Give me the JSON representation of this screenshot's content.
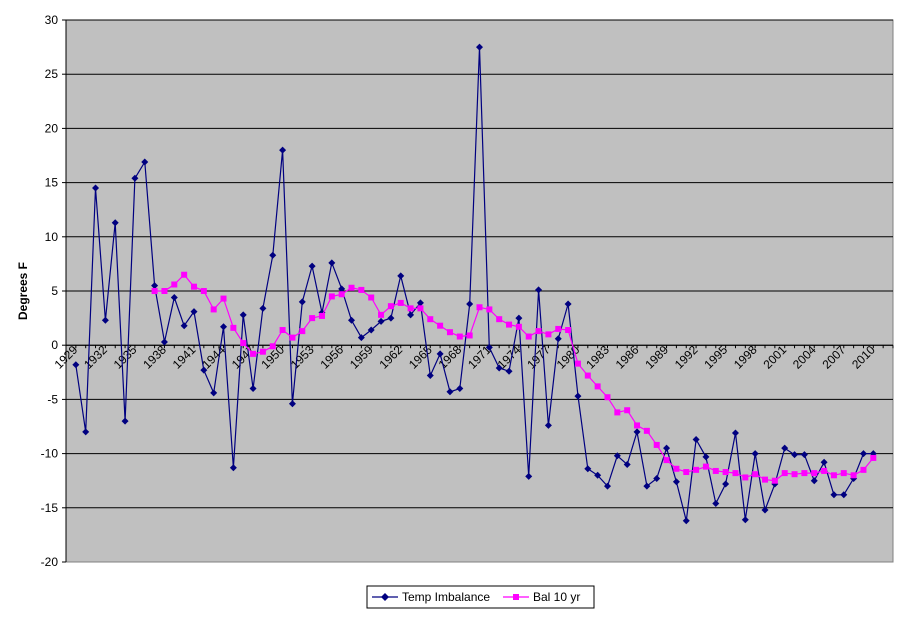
{
  "chart_data": {
    "type": "line",
    "title": "",
    "xlabel": "",
    "ylabel": "Degrees F",
    "ylim": [
      -20,
      30
    ],
    "yticks": [
      -20,
      -15,
      -10,
      -5,
      0,
      5,
      10,
      15,
      20,
      25,
      30
    ],
    "xlim": [
      1929,
      2013
    ],
    "xticks": [
      1929,
      1932,
      1935,
      1938,
      1941,
      1944,
      1947,
      1950,
      1953,
      1956,
      1959,
      1962,
      1965,
      1968,
      1971,
      1974,
      1977,
      1980,
      1983,
      1986,
      1989,
      1992,
      1995,
      1998,
      2001,
      2004,
      2007,
      2010
    ],
    "grid": true,
    "legend_position": "bottom",
    "colors": {
      "plot_bg": "#c0c0c0",
      "series1": "#000080",
      "series2": "#ff00ff"
    },
    "series": [
      {
        "name": "Temp Imbalance",
        "marker": "diamond",
        "x": [
          1930,
          1931,
          1932,
          1933,
          1934,
          1935,
          1936,
          1937,
          1938,
          1939,
          1940,
          1941,
          1942,
          1943,
          1944,
          1945,
          1946,
          1947,
          1948,
          1949,
          1950,
          1951,
          1952,
          1953,
          1954,
          1955,
          1956,
          1957,
          1958,
          1959,
          1960,
          1961,
          1962,
          1963,
          1964,
          1965,
          1966,
          1967,
          1968,
          1969,
          1970,
          1971,
          1972,
          1973,
          1974,
          1975,
          1976,
          1977,
          1978,
          1979,
          1980,
          1981,
          1982,
          1983,
          1984,
          1985,
          1986,
          1987,
          1988,
          1989,
          1990,
          1991,
          1992,
          1993,
          1994,
          1995,
          1996,
          1997,
          1998,
          1999,
          2000,
          2001,
          2002,
          2003,
          2004,
          2005,
          2006,
          2007,
          2008,
          2009,
          2010,
          2011
        ],
        "values": [
          -1.8,
          -8,
          14.5,
          2.3,
          11.3,
          -7,
          15.4,
          16.9,
          5.5,
          0.3,
          4.4,
          1.8,
          3.1,
          -2.3,
          -4.4,
          1.7,
          -11.3,
          2.8,
          -4,
          3.4,
          8.3,
          18,
          -5.4,
          4,
          7.3,
          3,
          7.6,
          5.2,
          2.3,
          0.7,
          1.4,
          2.2,
          2.5,
          6.4,
          2.8,
          3.9,
          -2.8,
          -0.8,
          -4.3,
          -4,
          3.8,
          27.5,
          -0.2,
          -2.1,
          -2.4,
          2.5,
          -12.1,
          5.1,
          -7.4,
          0.6,
          3.8,
          -4.7,
          -11.4,
          -12,
          -13,
          -10.2,
          -11,
          -8,
          -13,
          -12.3,
          -9.5,
          -12.6,
          -16.2,
          -8.7,
          -10.3,
          -14.6,
          -12.8,
          -8.1,
          -16.1,
          -10,
          -15.2,
          -12.8,
          -9.5,
          -10.1,
          -10.1,
          -12.5,
          -10.8,
          -13.8,
          -13.8,
          -12.3,
          -10,
          -10
        ]
      },
      {
        "name": "Bal 10 yr",
        "marker": "square",
        "x": [
          1938,
          1939,
          1940,
          1941,
          1942,
          1943,
          1944,
          1945,
          1946,
          1947,
          1948,
          1949,
          1950,
          1951,
          1952,
          1953,
          1954,
          1955,
          1956,
          1957,
          1958,
          1959,
          1960,
          1961,
          1962,
          1963,
          1964,
          1965,
          1966,
          1967,
          1968,
          1969,
          1970,
          1971,
          1972,
          1973,
          1974,
          1975,
          1976,
          1977,
          1978,
          1979,
          1980,
          1981,
          1982,
          1983,
          1984,
          1985,
          1986,
          1987,
          1988,
          1989,
          1990,
          1991,
          1992,
          1993,
          1994,
          1995,
          1996,
          1997,
          1998,
          1999,
          2000,
          2001,
          2002,
          2003,
          2004,
          2005,
          2006,
          2007,
          2008,
          2009,
          2010,
          2011
        ],
        "values": [
          5,
          5,
          5.6,
          6.5,
          5.4,
          5,
          3.3,
          4.3,
          1.6,
          0.2,
          -0.8,
          -0.6,
          -0.1,
          1.4,
          0.7,
          1.3,
          2.5,
          2.7,
          4.5,
          4.7,
          5.3,
          5.1,
          4.4,
          2.8,
          3.6,
          3.9,
          3.4,
          3.4,
          2.4,
          1.8,
          1.2,
          0.8,
          0.9,
          3.5,
          3.3,
          2.4,
          1.9,
          1.7,
          0.8,
          1.3,
          1,
          1.5,
          1.4,
          -1.7,
          -2.8,
          -3.8,
          -4.8,
          -6.2,
          -6,
          -7.4,
          -7.9,
          -9.2,
          -10.6,
          -11.4,
          -11.7,
          -11.5,
          -11.2,
          -11.6,
          -11.7,
          -11.8,
          -12.2,
          -11.9,
          -12.4,
          -12.5,
          -11.8,
          -11.9,
          -11.8,
          -11.8,
          -11.6,
          -12,
          -11.8,
          -12,
          -11.5,
          -10.4
        ]
      }
    ]
  }
}
